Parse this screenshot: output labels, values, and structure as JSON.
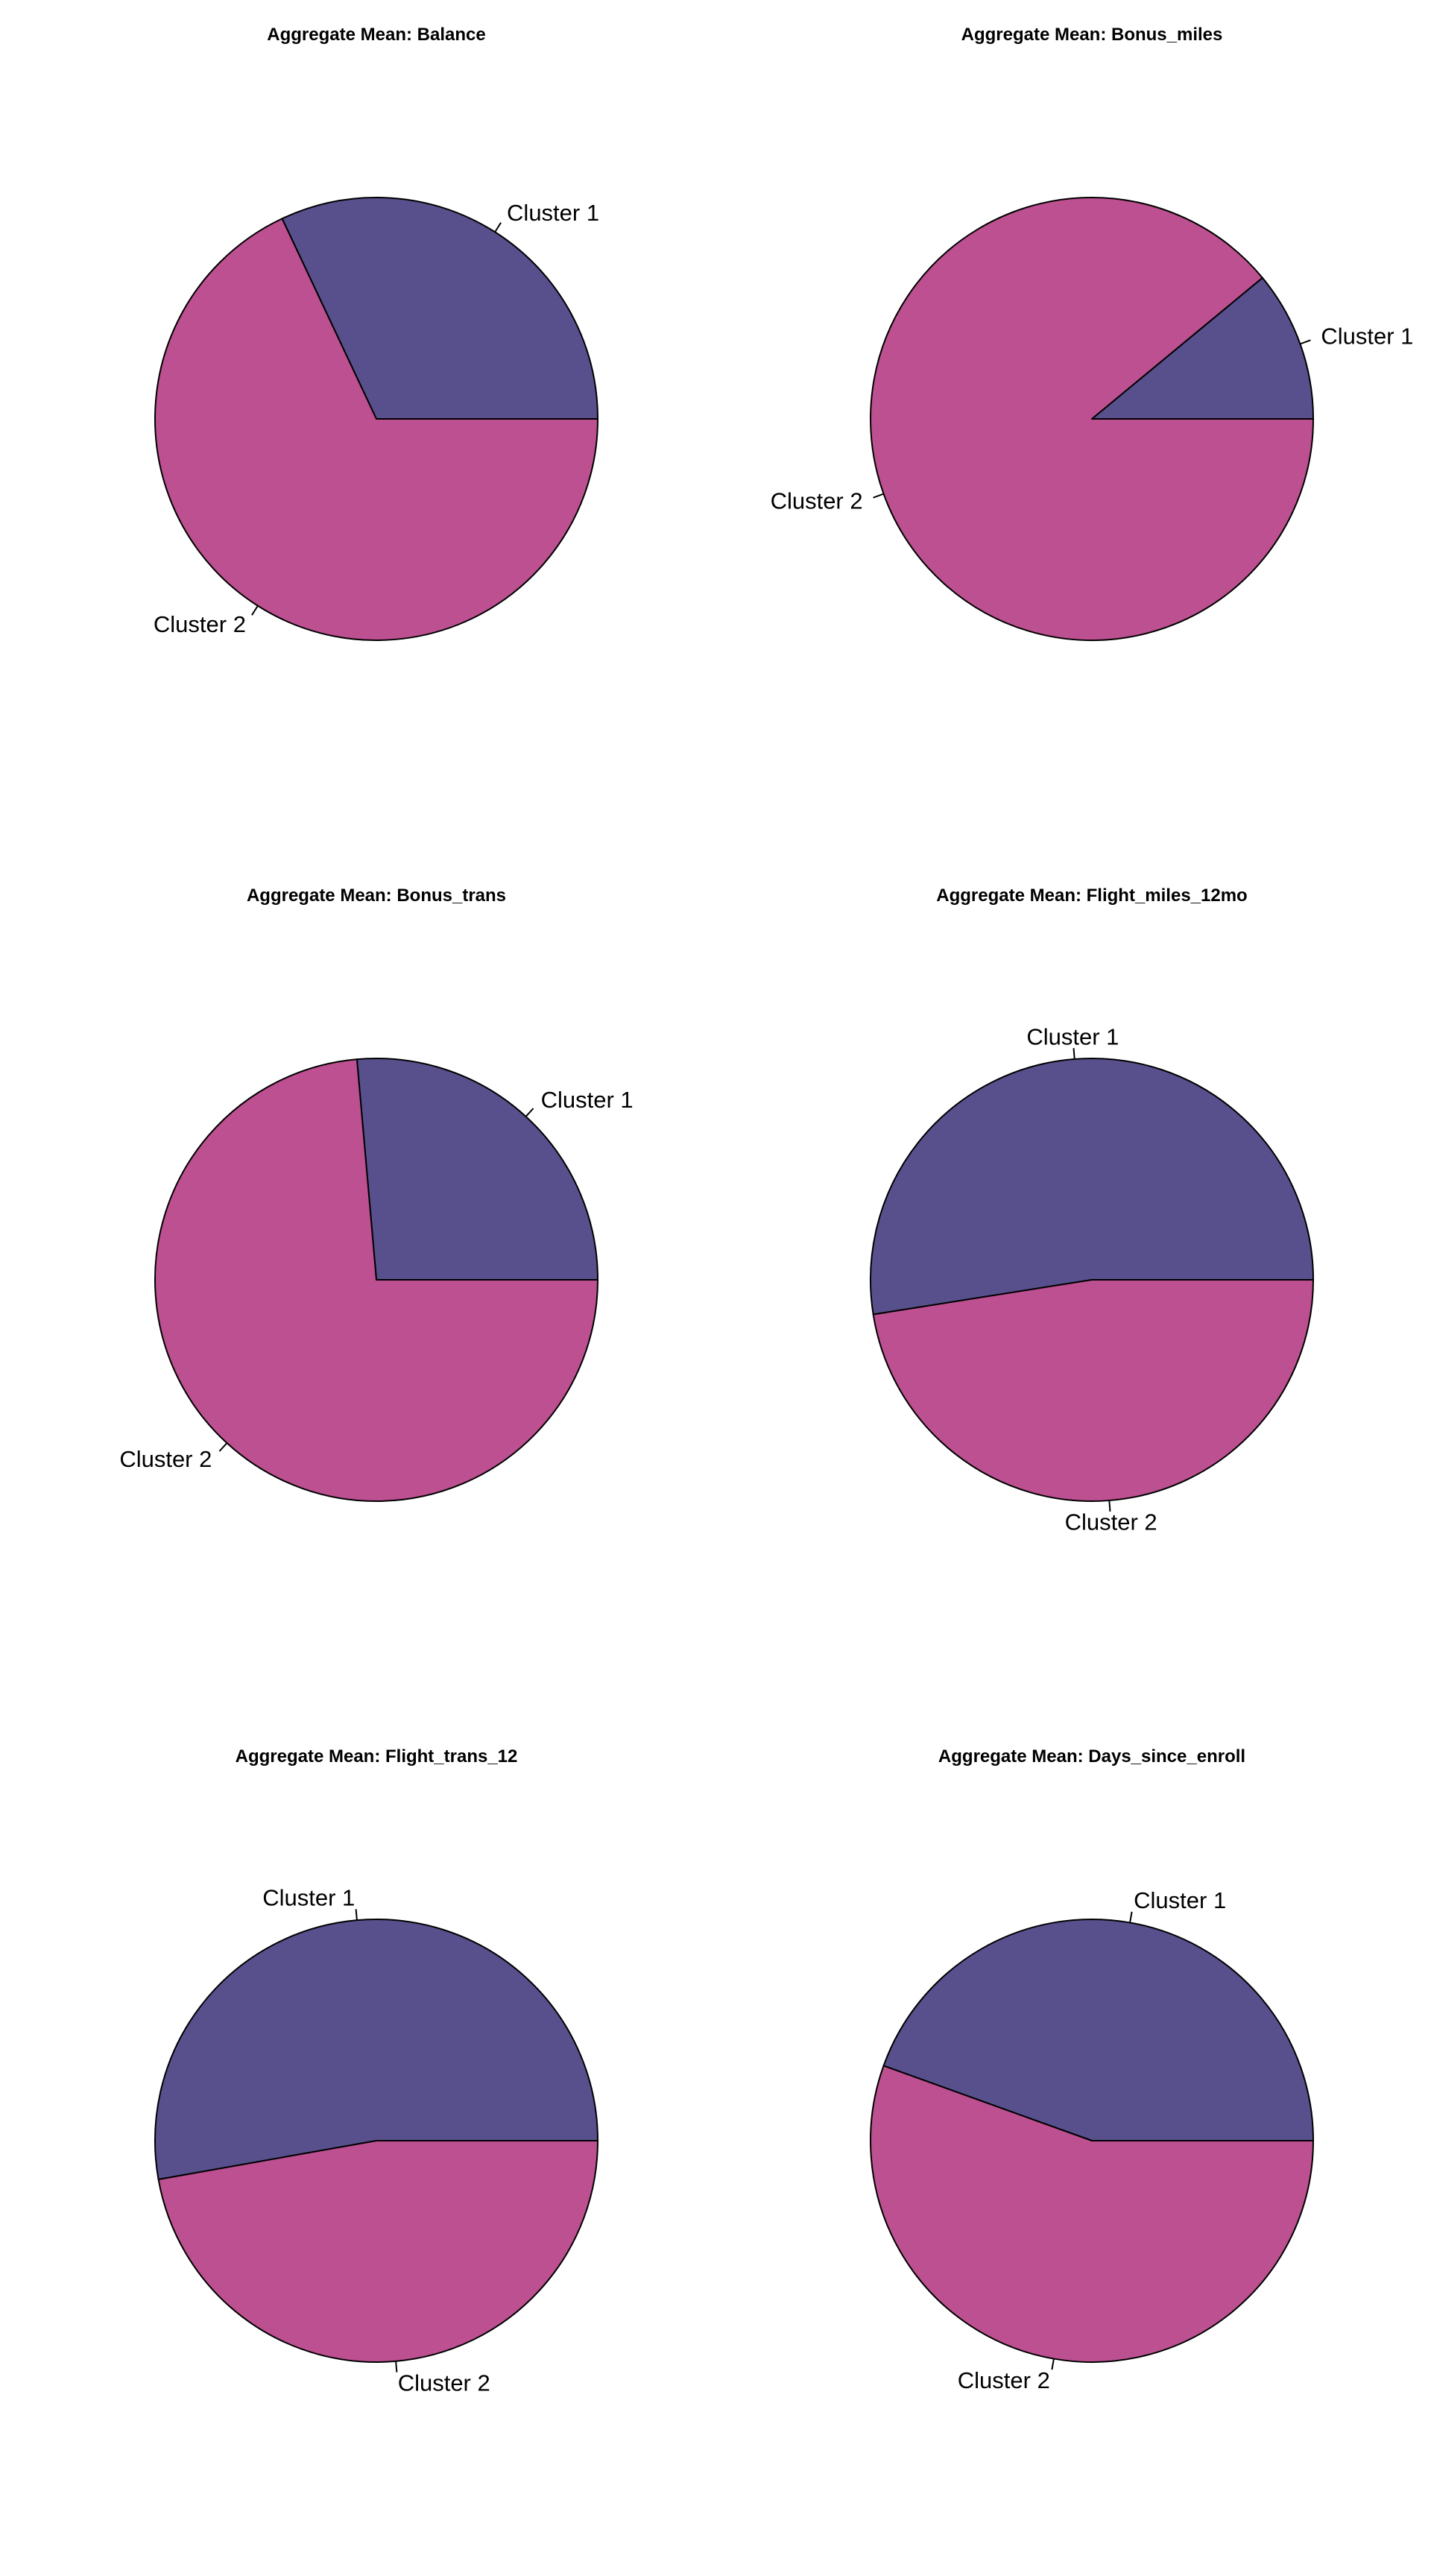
{
  "figure": {
    "background": "#ffffff",
    "slice_border": "#000000"
  },
  "chart_data": [
    {
      "type": "pie",
      "title": "Aggregate Mean:  Balance",
      "categories": [
        "Cluster 1",
        "Cluster 2"
      ],
      "values": [
        0.32,
        0.68
      ],
      "colors": [
        "#58508d",
        "#bc5090"
      ],
      "start_angle_deg": 0,
      "direction": "counterclockwise"
    },
    {
      "type": "pie",
      "title": "Aggregate Mean:  Bonus_miles",
      "categories": [
        "Cluster 1",
        "Cluster 2"
      ],
      "values": [
        0.11,
        0.89
      ],
      "colors": [
        "#58508d",
        "#bc5090"
      ],
      "start_angle_deg": 0,
      "direction": "counterclockwise"
    },
    {
      "type": "pie",
      "title": "Aggregate Mean:  Bonus_trans",
      "categories": [
        "Cluster 1",
        "Cluster 2"
      ],
      "values": [
        0.264,
        0.736
      ],
      "colors": [
        "#58508d",
        "#bc5090"
      ],
      "start_angle_deg": 0,
      "direction": "counterclockwise"
    },
    {
      "type": "pie",
      "title": "Aggregate Mean:  Flight_miles_12mo",
      "categories": [
        "Cluster 1",
        "Cluster 2"
      ],
      "values": [
        0.525,
        0.475
      ],
      "colors": [
        "#58508d",
        "#bc5090"
      ],
      "start_angle_deg": 0,
      "direction": "counterclockwise"
    },
    {
      "type": "pie",
      "title": "Aggregate Mean:  Flight_trans_12",
      "categories": [
        "Cluster 1",
        "Cluster 2"
      ],
      "values": [
        0.528,
        0.472
      ],
      "colors": [
        "#58508d",
        "#bc5090"
      ],
      "start_angle_deg": 0,
      "direction": "counterclockwise"
    },
    {
      "type": "pie",
      "title": "Aggregate Mean:  Days_since_enroll",
      "categories": [
        "Cluster 1",
        "Cluster 2"
      ],
      "values": [
        0.445,
        0.555
      ],
      "colors": [
        "#58508d",
        "#bc5090"
      ],
      "start_angle_deg": 0,
      "direction": "counterclockwise"
    }
  ]
}
